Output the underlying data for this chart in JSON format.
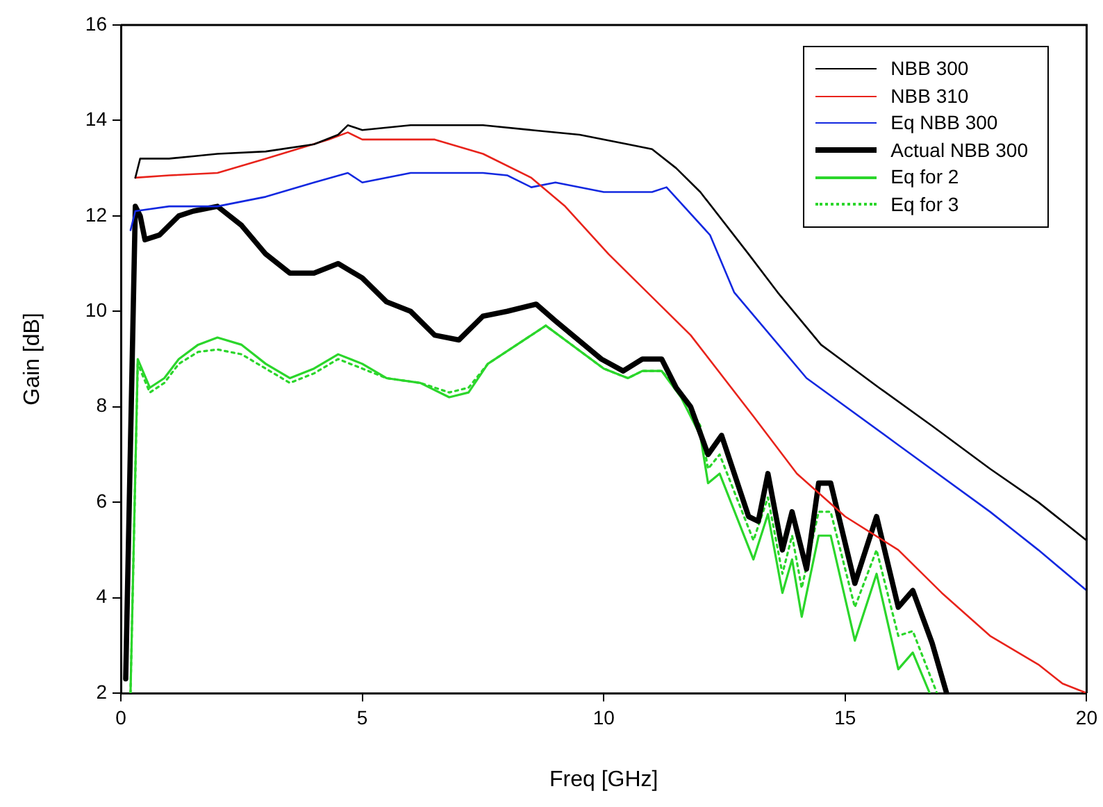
{
  "chart_data": {
    "type": "line",
    "xlabel": "Freq [GHz]",
    "ylabel": "Gain [dB]",
    "xlim": [
      0,
      20
    ],
    "ylim": [
      2,
      16
    ],
    "xticks": [
      0,
      5,
      10,
      15,
      20
    ],
    "yticks": [
      2,
      4,
      6,
      8,
      10,
      12,
      14,
      16
    ],
    "grid": false,
    "legend": "top right",
    "marker": "none",
    "series": [
      {
        "name": "NBB 300",
        "color": "#000000",
        "x": [
          0.3,
          0.4,
          1,
          1.5,
          2,
          3,
          4,
          4.5,
          4.7,
          5,
          6,
          7,
          7.5,
          8.5,
          9.5,
          10.5,
          11,
          11.5,
          12,
          13,
          13.6,
          14.5,
          15.7,
          16.8,
          18,
          19,
          20
        ],
        "values": [
          12.8,
          13.2,
          13.2,
          13.25,
          13.3,
          13.35,
          13.5,
          13.7,
          13.9,
          13.8,
          13.9,
          13.9,
          13.9,
          13.8,
          13.7,
          13.5,
          13.4,
          13.0,
          12.5,
          11.2,
          10.4,
          9.3,
          8.4,
          7.6,
          6.7,
          6.0,
          5.2
        ]
      },
      {
        "name": "NBB 310",
        "color": "#e8231b",
        "x": [
          0.3,
          1,
          2,
          3,
          4.3,
          4.7,
          5,
          6,
          6.5,
          7.5,
          8.5,
          9.2,
          10.1,
          11.8,
          13.1,
          14,
          15,
          16.1,
          17,
          18,
          19,
          19.5,
          20
        ],
        "values": [
          12.8,
          12.85,
          12.9,
          13.2,
          13.6,
          13.75,
          13.6,
          13.6,
          13.6,
          13.3,
          12.8,
          12.2,
          11.2,
          9.5,
          7.8,
          6.6,
          5.7,
          5.0,
          4.1,
          3.2,
          2.6,
          2.2,
          2.0
        ]
      },
      {
        "name": "Eq NBB 300",
        "color": "#1228e0",
        "x": [
          0.2,
          0.3,
          1,
          2,
          3,
          4,
          4.7,
          5,
          6,
          7.5,
          8,
          8.5,
          9,
          10,
          11,
          11.3,
          12.2,
          12.7,
          14.2,
          16.1,
          18,
          19,
          20
        ],
        "values": [
          11.7,
          12.1,
          12.2,
          12.2,
          12.4,
          12.7,
          12.9,
          12.7,
          12.9,
          12.9,
          12.85,
          12.6,
          12.7,
          12.5,
          12.5,
          12.6,
          11.6,
          10.4,
          8.6,
          7.2,
          5.8,
          5.0,
          4.15
        ]
      },
      {
        "name": "Actual NBB 300",
        "color": "#000000",
        "x": [
          0.1,
          0.3,
          0.4,
          0.5,
          0.8,
          1.2,
          1.5,
          2,
          2.5,
          3,
          3.5,
          4,
          4.5,
          5,
          5.5,
          6,
          6.5,
          7,
          7.5,
          8,
          8.6,
          9,
          9.95,
          10.4,
          10.8,
          11.2,
          11.5,
          11.8,
          12.16,
          12.44,
          13.0,
          13.2,
          13.4,
          13.7,
          13.9,
          14.2,
          14.45,
          14.7,
          15.2,
          15.65,
          16.1,
          16.4,
          16.8,
          17.1
        ],
        "values": [
          2.3,
          12.2,
          12.0,
          11.5,
          11.6,
          12.0,
          12.1,
          12.2,
          11.8,
          11.2,
          10.8,
          10.8,
          11.0,
          10.7,
          10.2,
          10.0,
          9.5,
          9.4,
          9.9,
          10.0,
          10.15,
          9.8,
          9.0,
          8.75,
          9.0,
          9.0,
          8.4,
          8.0,
          7.0,
          7.4,
          5.7,
          5.6,
          6.6,
          5.0,
          5.8,
          4.6,
          6.4,
          6.4,
          4.3,
          5.7,
          3.8,
          4.15,
          3.05,
          2.0
        ]
      },
      {
        "name": "Eq for 2",
        "color": "#2bd62b",
        "x": [
          0.2,
          0.35,
          0.6,
          0.9,
          1.2,
          1.6,
          2,
          2.5,
          3,
          3.5,
          4,
          4.5,
          5,
          5.5,
          6.2,
          6.8,
          7.2,
          7.6,
          8.2,
          8.8,
          9.2,
          10,
          10.5,
          10.8,
          11.2,
          11.6,
          12,
          12.16,
          12.4,
          13.1,
          13.4,
          13.7,
          13.9,
          14.1,
          14.45,
          14.7,
          15.2,
          15.65,
          16.1,
          16.4,
          16.75
        ],
        "values": [
          2.0,
          9.0,
          8.4,
          8.6,
          9.0,
          9.3,
          9.45,
          9.3,
          8.9,
          8.6,
          8.8,
          9.1,
          8.9,
          8.6,
          8.5,
          8.2,
          8.3,
          8.9,
          9.3,
          9.7,
          9.4,
          8.8,
          8.6,
          8.75,
          8.75,
          8.2,
          7.4,
          6.4,
          6.6,
          4.8,
          5.75,
          4.1,
          4.8,
          3.6,
          5.3,
          5.3,
          3.1,
          4.5,
          2.5,
          2.85,
          2.0
        ]
      },
      {
        "name": "Eq for 3",
        "color": "#2bd62b",
        "line_style": "dotted",
        "x": [
          0.2,
          0.35,
          0.6,
          0.9,
          1.2,
          1.6,
          2,
          2.5,
          3,
          3.5,
          4,
          4.5,
          5,
          5.5,
          6.2,
          6.8,
          7.2,
          7.6,
          8.2,
          8.8,
          9.2,
          10,
          10.5,
          10.8,
          11.2,
          11.6,
          12,
          12.16,
          12.4,
          13.1,
          13.4,
          13.7,
          13.9,
          14.1,
          14.45,
          14.7,
          15.2,
          15.65,
          16.1,
          16.4,
          16.9
        ],
        "values": [
          2.0,
          8.9,
          8.3,
          8.5,
          8.9,
          9.15,
          9.2,
          9.1,
          8.8,
          8.5,
          8.7,
          9.0,
          8.8,
          8.6,
          8.5,
          8.3,
          8.4,
          8.9,
          9.3,
          9.7,
          9.4,
          8.8,
          8.6,
          8.75,
          8.75,
          8.3,
          7.6,
          6.7,
          7.0,
          5.2,
          6.1,
          4.5,
          5.3,
          4.2,
          5.8,
          5.8,
          3.8,
          5.0,
          3.2,
          3.3,
          2.0
        ]
      }
    ]
  }
}
